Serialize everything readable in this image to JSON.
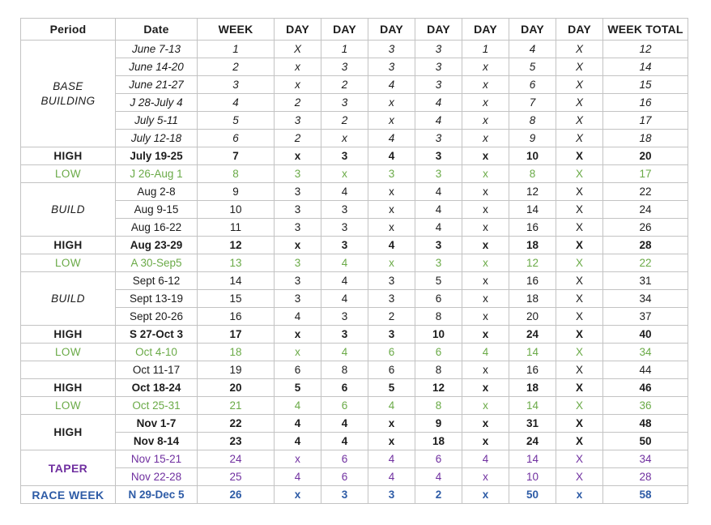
{
  "table": {
    "headers": [
      "Period",
      "Date",
      "WEEK",
      "DAY",
      "DAY",
      "DAY",
      "DAY",
      "DAY",
      "DAY",
      "DAY",
      "WEEK TOTAL"
    ],
    "sections": [
      {
        "style": "base",
        "period_lines": [
          "BASE",
          "BUILDING"
        ],
        "rows": [
          {
            "date": "June 7-13",
            "week": "1",
            "days": [
              "X",
              "1",
              "3",
              "3",
              "1",
              "4",
              "X"
            ],
            "total": "12"
          },
          {
            "date": "June 14-20",
            "week": "2",
            "days": [
              "x",
              "3",
              "3",
              "3",
              "x",
              "5",
              "X"
            ],
            "total": "14"
          },
          {
            "date": "June 21-27",
            "week": "3",
            "days": [
              "x",
              "2",
              "4",
              "3",
              "x",
              "6",
              "X"
            ],
            "total": "15"
          },
          {
            "date": "J 28-July 4",
            "week": "4",
            "days": [
              "2",
              "3",
              "x",
              "4",
              "x",
              "7",
              "X"
            ],
            "total": "16"
          },
          {
            "date": "July 5-11",
            "week": "5",
            "days": [
              "3",
              "2",
              "x",
              "4",
              "x",
              "8",
              "X"
            ],
            "total": "17"
          },
          {
            "date": "July 12-18",
            "week": "6",
            "days": [
              "2",
              "x",
              "4",
              "3",
              "x",
              "9",
              "X"
            ],
            "total": "18"
          }
        ]
      },
      {
        "style": "high",
        "period_lines": [
          "HIGH"
        ],
        "rows": [
          {
            "date": "July 19-25",
            "week": "7",
            "days": [
              "x",
              "3",
              "4",
              "3",
              "x",
              "10",
              "X"
            ],
            "total": "20"
          }
        ]
      },
      {
        "style": "low",
        "period_lines": [
          "LOW"
        ],
        "rows": [
          {
            "date": "J 26-Aug 1",
            "week": "8",
            "days": [
              "3",
              "x",
              "3",
              "3",
              "x",
              "8",
              "X"
            ],
            "total": "17"
          }
        ]
      },
      {
        "style": "build",
        "period_lines": [
          "BUILD"
        ],
        "rows": [
          {
            "date": "Aug 2-8",
            "week": "9",
            "days": [
              "3",
              "4",
              "x",
              "4",
              "x",
              "12",
              "X"
            ],
            "total": "22"
          },
          {
            "date": "Aug 9-15",
            "week": "10",
            "days": [
              "3",
              "3",
              "x",
              "4",
              "x",
              "14",
              "X"
            ],
            "total": "24"
          },
          {
            "date": "Aug 16-22",
            "week": "11",
            "days": [
              "3",
              "3",
              "x",
              "4",
              "x",
              "16",
              "X"
            ],
            "total": "26"
          }
        ]
      },
      {
        "style": "high",
        "period_lines": [
          "HIGH"
        ],
        "rows": [
          {
            "date": "Aug 23-29",
            "week": "12",
            "days": [
              "x",
              "3",
              "4",
              "3",
              "x",
              "18",
              "X"
            ],
            "total": "28"
          }
        ]
      },
      {
        "style": "low",
        "period_lines": [
          "LOW"
        ],
        "rows": [
          {
            "date": "A 30-Sep5",
            "week": "13",
            "days": [
              "3",
              "4",
              "x",
              "3",
              "x",
              "12",
              "X"
            ],
            "total": "22"
          }
        ]
      },
      {
        "style": "build",
        "period_lines": [
          "BUILD"
        ],
        "rows": [
          {
            "date": "Sept 6-12",
            "week": "14",
            "days": [
              "3",
              "4",
              "3",
              "5",
              "x",
              "16",
              "X"
            ],
            "total": "31"
          },
          {
            "date": "Sept 13-19",
            "week": "15",
            "days": [
              "3",
              "4",
              "3",
              "6",
              "x",
              "18",
              "X"
            ],
            "total": "34"
          },
          {
            "date": "Sept 20-26",
            "week": "16",
            "days": [
              "4",
              "3",
              "2",
              "8",
              "x",
              "20",
              "X"
            ],
            "total": "37"
          }
        ]
      },
      {
        "style": "high",
        "period_lines": [
          "HIGH"
        ],
        "rows": [
          {
            "date": "S 27-Oct 3",
            "week": "17",
            "days": [
              "x",
              "3",
              "3",
              "10",
              "x",
              "24",
              "X"
            ],
            "total": "40"
          }
        ]
      },
      {
        "style": "low",
        "period_lines": [
          "LOW"
        ],
        "rows": [
          {
            "date": "Oct 4-10",
            "week": "18",
            "days": [
              "x",
              "4",
              "6",
              "6",
              "4",
              "14",
              "X"
            ],
            "total": "34"
          }
        ]
      },
      {
        "style": "none",
        "period_lines": [],
        "rows": [
          {
            "date": "Oct 11-17",
            "week": "19",
            "days": [
              "6",
              "8",
              "6",
              "8",
              "x",
              "16",
              "X"
            ],
            "total": "44"
          }
        ]
      },
      {
        "style": "high",
        "period_lines": [
          "HIGH"
        ],
        "rows": [
          {
            "date": "Oct 18-24",
            "week": "20",
            "days": [
              "5",
              "6",
              "5",
              "12",
              "x",
              "18",
              "X"
            ],
            "total": "46"
          }
        ]
      },
      {
        "style": "low",
        "period_lines": [
          "LOW"
        ],
        "rows": [
          {
            "date": "Oct 25-31",
            "week": "21",
            "days": [
              "4",
              "6",
              "4",
              "8",
              "x",
              "14",
              "X"
            ],
            "total": "36"
          }
        ]
      },
      {
        "style": "high",
        "period_lines": [
          "HIGH"
        ],
        "rows": [
          {
            "date": "Nov 1-7",
            "week": "22",
            "days": [
              "4",
              "4",
              "x",
              "9",
              "x",
              "31",
              "X"
            ],
            "total": "48"
          },
          {
            "date": "Nov 8-14",
            "week": "23",
            "days": [
              "4",
              "4",
              "x",
              "18",
              "x",
              "24",
              "X"
            ],
            "total": "50"
          }
        ]
      },
      {
        "style": "taper",
        "period_lines": [
          "TAPER"
        ],
        "rows": [
          {
            "date": "Nov 15-21",
            "week": "24",
            "days": [
              "x",
              "6",
              "4",
              "6",
              "4",
              "14",
              "X"
            ],
            "total": "34"
          },
          {
            "date": "Nov 22-28",
            "week": "25",
            "days": [
              "4",
              "6",
              "4",
              "4",
              "x",
              "10",
              "X"
            ],
            "total": "28"
          }
        ]
      },
      {
        "style": "race",
        "period_lines": [
          "RACE WEEK"
        ],
        "rows": [
          {
            "date": "N 29-Dec 5",
            "week": "26",
            "days": [
              "x",
              "3",
              "3",
              "2",
              "x",
              "50",
              "x"
            ],
            "total": "58"
          }
        ]
      }
    ]
  },
  "colors": {
    "text_black": "#1c1c1c",
    "low_green": "#6aaa47",
    "taper_purple": "#7030a0",
    "race_blue": "#2d5ba6",
    "grid_border": "#c3c3c3",
    "grid_border_strong": "#a6a6a6"
  }
}
